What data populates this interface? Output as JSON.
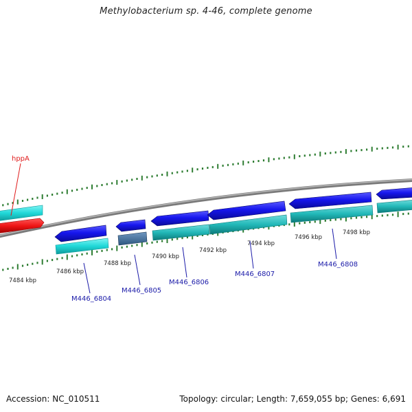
{
  "title": "Methylobacterium sp. 4-46, complete genome",
  "accession_text": "Accession: NC_010511",
  "topology_text": "Topology: circular; Length: 7,659,055 bp; Genes: 6,691",
  "ruler": {
    "ticks": [
      {
        "kbp": 7484,
        "label": "7484 kbp"
      },
      {
        "kbp": 7486,
        "label": "7486 kbp"
      },
      {
        "kbp": 7488,
        "label": "7488 kbp"
      },
      {
        "kbp": 7490,
        "label": "7490 kbp"
      },
      {
        "kbp": 7492,
        "label": "7492 kbp"
      },
      {
        "kbp": 7494,
        "label": "7494 kbp"
      },
      {
        "kbp": 7496,
        "label": "7496 kbp"
      },
      {
        "kbp": 7498,
        "label": "7498 kbp"
      }
    ]
  },
  "genes": [
    {
      "name": "hppA",
      "color": "#e01a1a"
    },
    {
      "name": "M446_6804",
      "color": "#1a1aa8"
    },
    {
      "name": "M446_6805",
      "color": "#1a1aa8"
    },
    {
      "name": "M446_6806",
      "color": "#1a1aa8"
    },
    {
      "name": "M446_6807",
      "color": "#1a1aa8"
    },
    {
      "name": "M446_6808",
      "color": "#1a1aa8"
    }
  ],
  "colors": {
    "cds": "#1a1aee",
    "cds_alt": "#3e6ea0",
    "rrna": "#e01a1a",
    "cyan_track": "#18d8d8",
    "backbone": "#8a8a8a",
    "tick_green": "#2e7d32"
  }
}
